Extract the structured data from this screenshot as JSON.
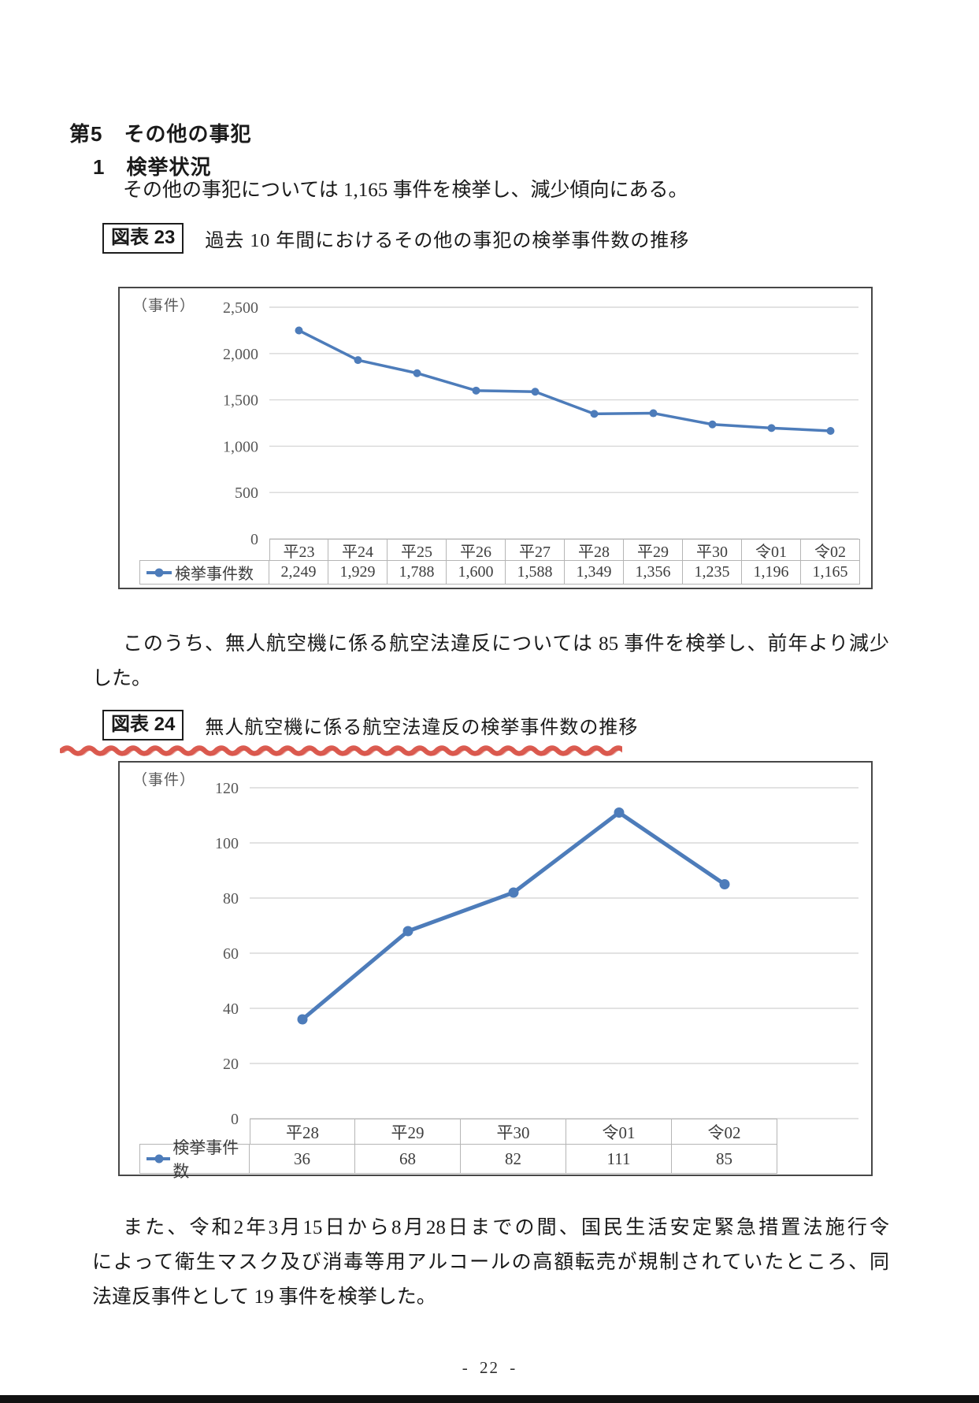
{
  "page": {
    "section_heading": "第5　その他の事犯",
    "sub_heading": "1　検挙状況",
    "paragraph1": "その他の事犯については 1,165 事件を検挙し、減少傾向にある。",
    "paragraph2_lines": [
      "このうち、無人航空機に係る航空法違反については 85 事件を検挙し、前年より減少",
      "した。"
    ],
    "paragraph3_lines": [
      "また、令和2年3月15日から8月28日までの間、国民生活安定緊急措置法施行令",
      "によって衛生マスク及び消毒等用アルコールの高額転売が規制されていたところ、同",
      "法違反事件として 19 事件を検挙した。"
    ],
    "page_number": "- 22 -"
  },
  "figure23": {
    "label": "図表 23",
    "title": "過去 10 年間におけるその他の事犯の検挙事件数の推移",
    "unit_label": "（事件）"
  },
  "figure24": {
    "label": "図表 24",
    "title": "無人航空機に係る航空法違反の検挙事件数の推移",
    "unit_label": "（事件）",
    "underline_color": "#d95348"
  },
  "chart_data": [
    {
      "type": "line",
      "title": "過去10年間におけるその他の事犯の検挙事件数の推移",
      "categories": [
        "平23",
        "平24",
        "平25",
        "平26",
        "平27",
        "平28",
        "平29",
        "平30",
        "令01",
        "令02"
      ],
      "series": [
        {
          "name": "検挙事件数",
          "values": [
            2249,
            1929,
            1788,
            1600,
            1588,
            1349,
            1356,
            1235,
            1196,
            1165
          ]
        }
      ],
      "value_labels": [
        "2,249",
        "1,929",
        "1,788",
        "1,600",
        "1,588",
        "1,349",
        "1,356",
        "1,235",
        "1,196",
        "1,165"
      ],
      "ylabel": "（事件）",
      "ylim": [
        0,
        2500
      ],
      "yticks": [
        "0",
        "500",
        "1,000",
        "1,500",
        "2,000",
        "2,500"
      ],
      "grid": true,
      "legend_position": "table-left",
      "line_color": "#4d7cba",
      "grid_color": "#d8d8d8"
    },
    {
      "type": "line",
      "title": "無人航空機に係る航空法違反の検挙事件数の推移",
      "categories": [
        "平28",
        "平29",
        "平30",
        "令01",
        "令02"
      ],
      "series": [
        {
          "name": "検挙事件数",
          "values": [
            36,
            68,
            82,
            111,
            85
          ]
        }
      ],
      "value_labels": [
        "36",
        "68",
        "82",
        "111",
        "85"
      ],
      "ylabel": "（事件）",
      "ylim": [
        0,
        120
      ],
      "yticks": [
        "0",
        "20",
        "40",
        "60",
        "80",
        "100",
        "120"
      ],
      "grid": true,
      "legend_position": "table-left",
      "line_color": "#4d7cba",
      "grid_color": "#d8d8d8"
    }
  ]
}
